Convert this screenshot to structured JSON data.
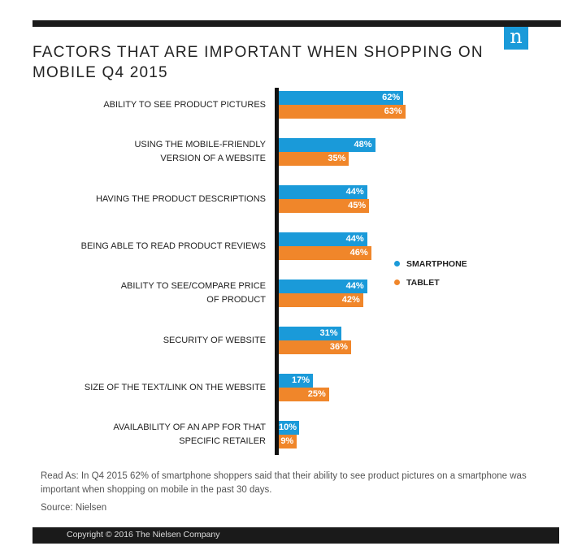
{
  "chart_data": {
    "type": "bar",
    "orientation": "horizontal",
    "title": "FACTORS THAT ARE IMPORTANT WHEN SHOPPING ON MOBILE Q4 2015",
    "categories": [
      [
        "ABILITY TO SEE PRODUCT PICTURES"
      ],
      [
        "USING THE MOBILE-FRIENDLY",
        "VERSION OF A WEBSITE"
      ],
      [
        "HAVING THE PRODUCT DESCRIPTIONS"
      ],
      [
        "BEING ABLE TO READ PRODUCT REVIEWS"
      ],
      [
        "ABILITY TO SEE/COMPARE PRICE",
        "OF PRODUCT"
      ],
      [
        "SECURITY OF WEBSITE"
      ],
      [
        "SIZE OF THE TEXT/LINK ON THE WEBSITE"
      ],
      [
        "AVAILABILITY OF AN APP FOR THAT",
        "SPECIFIC RETAILER"
      ]
    ],
    "series": [
      {
        "name": "SMARTPHONE",
        "color": "#1a9ad9",
        "values": [
          62,
          48,
          44,
          44,
          44,
          31,
          17,
          10
        ]
      },
      {
        "name": "TABLET",
        "color": "#f0862a",
        "values": [
          63,
          35,
          45,
          46,
          42,
          36,
          25,
          9
        ]
      }
    ],
    "value_suffix": "%",
    "legend_position": "right",
    "xlim": [
      0,
      100
    ]
  },
  "brand": {
    "logo_letter": "n"
  },
  "note": "Read As: In Q4 2015 62% of smartphone shoppers said that their ability to see product pictures on a smartphone was important when shopping on mobile in the past 30 days.",
  "source": "Source: Nielsen",
  "copyright": "Copyright © 2016 The Nielsen Company"
}
